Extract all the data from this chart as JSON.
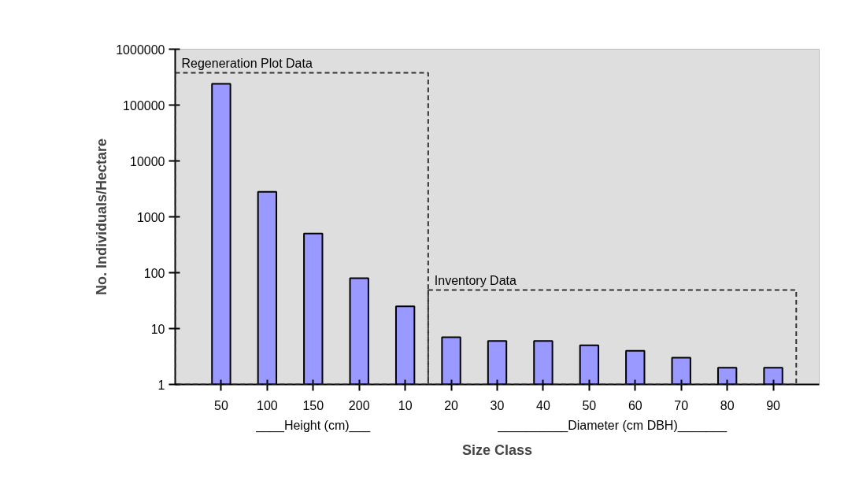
{
  "chart_data": {
    "type": "bar",
    "xlabel": "Size Class",
    "ylabel": "No. Individuals/Hectare",
    "categories": [
      "50",
      "100",
      "150",
      "200",
      "10",
      "20",
      "30",
      "40",
      "50",
      "60",
      "70",
      "80",
      "90"
    ],
    "values": [
      240000,
      2800,
      500,
      80,
      25,
      7,
      6,
      6,
      5,
      4,
      3,
      2,
      2
    ],
    "color": "#9999ff",
    "log": true,
    "ylim": [
      1,
      1000000
    ],
    "yticks": [
      1,
      10,
      100,
      1000,
      10000,
      100000,
      1000000
    ],
    "grid": false,
    "annotations": [
      "Regeneration Plot Data",
      "Inventory Data",
      "____Height (cm)___",
      "__________Diameter (cm DBH)_______"
    ]
  }
}
